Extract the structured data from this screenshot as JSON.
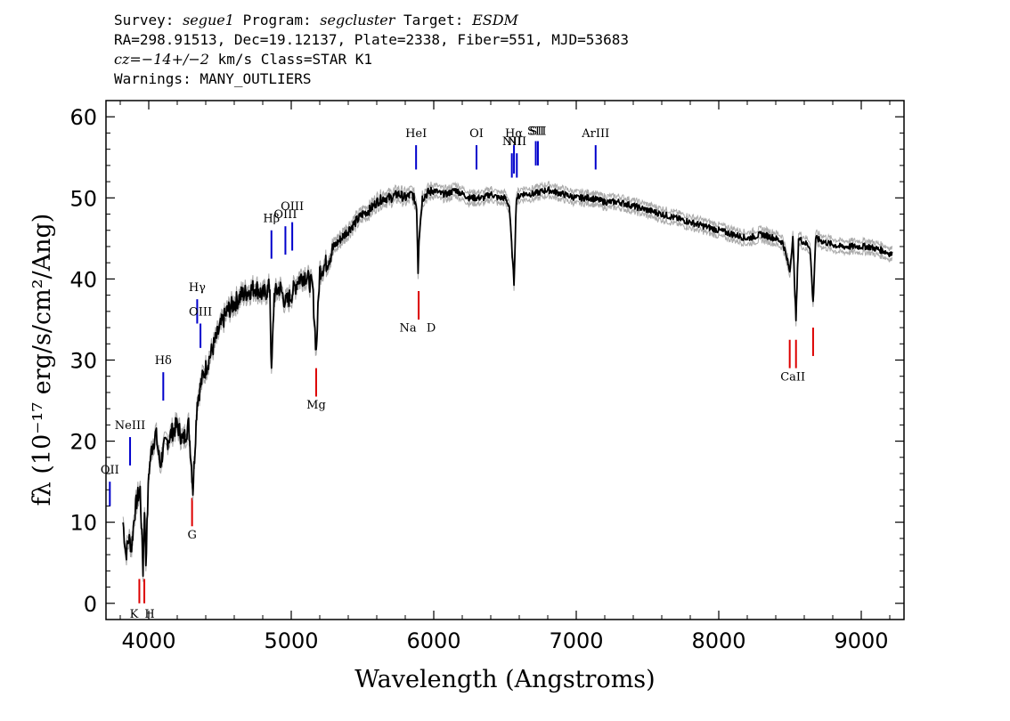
{
  "header": {
    "survey_label": "Survey:",
    "survey": "segue1",
    "program_label": "Program:",
    "program": "segcluster",
    "target_label": "Target:",
    "target": "ESDM",
    "coords": "RA=298.91513, Dec=19.12137, Plate=2338, Fiber=551, MJD=53683",
    "redshift_italic": "cz=−14+/−2",
    "redshift_rest": " km/s Class=STAR K1",
    "warnings": "Warnings: MANY_OUTLIERS"
  },
  "chart_data": {
    "type": "line",
    "xlabel": "Wavelength (Angstroms)",
    "ylabel": "fλ (10⁻¹⁷ erg/s/cm²/Ang)",
    "xlim": [
      3700,
      9300
    ],
    "ylim": [
      -2,
      62
    ],
    "x_ticks": [
      4000,
      5000,
      6000,
      7000,
      8000,
      9000
    ],
    "y_ticks": [
      0,
      10,
      20,
      30,
      40,
      50,
      60
    ],
    "grid": false,
    "series": [
      {
        "color": "#000000",
        "error_color": "#aaaaaa",
        "x": [
          3820,
          3840,
          3860,
          3880,
          3900,
          3920,
          3940,
          3960,
          3970,
          3980,
          4000,
          4020,
          4050,
          4080,
          4102,
          4130,
          4160,
          4200,
          4240,
          4280,
          4300,
          4310,
          4340,
          4380,
          4420,
          4460,
          4500,
          4550,
          4600,
          4650,
          4700,
          4750,
          4800,
          4850,
          4861,
          4880,
          4920,
          4960,
          5000,
          5050,
          5100,
          5150,
          5175,
          5200,
          5250,
          5300,
          5350,
          5400,
          5450,
          5500,
          5550,
          5600,
          5650,
          5700,
          5750,
          5800,
          5850,
          5880,
          5890,
          5896,
          5920,
          5950,
          6000,
          6050,
          6100,
          6150,
          6200,
          6250,
          6300,
          6350,
          6400,
          6450,
          6500,
          6530,
          6563,
          6580,
          6620,
          6700,
          6800,
          6900,
          7000,
          7100,
          7200,
          7300,
          7400,
          7500,
          7600,
          7700,
          7800,
          7900,
          8000,
          8100,
          8200,
          8300,
          8400,
          8450,
          8498,
          8520,
          8542,
          8560,
          8600,
          8640,
          8662,
          8680,
          8750,
          8850,
          8950,
          9050,
          9150,
          9220
        ],
        "values": [
          10,
          6,
          8,
          7,
          11,
          13,
          14,
          4,
          12,
          5,
          16,
          19,
          21,
          17,
          19,
          20,
          21,
          22,
          20,
          22,
          17,
          14,
          25,
          28,
          30,
          32,
          34,
          36,
          37,
          38,
          38.5,
          39,
          38,
          39,
          28,
          38,
          39,
          37,
          38,
          40,
          40.5,
          39,
          31,
          41,
          42,
          44,
          45,
          46,
          47,
          48,
          48.5,
          49.5,
          50,
          50,
          50.5,
          50,
          50.5,
          49,
          41,
          45,
          50,
          50.5,
          51,
          50.5,
          50.5,
          51,
          50.5,
          50,
          50,
          50,
          50.5,
          50,
          50,
          49,
          39.5,
          50,
          50.5,
          50.5,
          51,
          50.5,
          50,
          50,
          49.5,
          49.5,
          49,
          48.5,
          48,
          47.5,
          47,
          46.5,
          46,
          45.5,
          45,
          45.5,
          45,
          44.5,
          41,
          45,
          35,
          45,
          44.5,
          44,
          37,
          45,
          44.5,
          44,
          44,
          44,
          43.5,
          43
        ]
      }
    ],
    "emission_lines": [
      {
        "label": "OII",
        "x": 3727,
        "y_bottom": 12,
        "y_top": 15,
        "label_y": 16
      },
      {
        "label": "NeIII",
        "x": 3869,
        "y_bottom": 17,
        "y_top": 20.5,
        "label_y": 21.5
      },
      {
        "label": "Hδ",
        "x": 4102,
        "y_bottom": 25,
        "y_top": 28.5,
        "label_y": 29.5
      },
      {
        "label": "Hγ",
        "x": 4340,
        "y_bottom": 34.5,
        "y_top": 37.5,
        "label_y": 38.5
      },
      {
        "label": "OIII",
        "x": 4363,
        "y_bottom": 31.5,
        "y_top": 34.5,
        "label_y": 35.5
      },
      {
        "label": "Hβ",
        "x": 4861,
        "y_bottom": 42.5,
        "y_top": 46,
        "label_y": 47
      },
      {
        "label": "OIII",
        "x": 4959,
        "y_bottom": 43,
        "y_top": 46.5,
        "label_y": 47.5
      },
      {
        "label": "OIII",
        "x": 5007,
        "y_bottom": 43.5,
        "y_top": 47,
        "label_y": 48.5
      },
      {
        "label": "HeI",
        "x": 5876,
        "y_bottom": 53.5,
        "y_top": 56.5,
        "label_y": 57.5
      },
      {
        "label": "OI",
        "x": 6300,
        "y_bottom": 53.5,
        "y_top": 56.5,
        "label_y": 57.5
      },
      {
        "label": "NII",
        "x": 6548,
        "y_bottom": 52.5,
        "y_top": 55.5,
        "label_y": 56.5
      },
      {
        "label": "Hα",
        "x": 6563,
        "y_bottom": 53,
        "y_top": 56.5,
        "label_y": 57.5
      },
      {
        "label": "NII",
        "x": 6583,
        "y_bottom": 52.5,
        "y_top": 55.5,
        "label_y": 56.5
      },
      {
        "label": "SII",
        "x": 6716,
        "y_bottom": 54,
        "y_top": 57,
        "label_y": 57.8
      },
      {
        "label": "SII",
        "x": 6731,
        "y_bottom": 54,
        "y_top": 57,
        "label_y": 57.8
      },
      {
        "label": "ArIII",
        "x": 7136,
        "y_bottom": 53.5,
        "y_top": 56.5,
        "label_y": 57.5
      }
    ],
    "absorption_lines": [
      {
        "label": "K",
        "x": 3934,
        "y_bottom": 0,
        "y_top": 3,
        "label_y": -1.8
      },
      {
        "label": "H",
        "x": 3969,
        "y_bottom": 0,
        "y_top": 3,
        "label_y": -1.8
      },
      {
        "label": "G",
        "x": 4304,
        "y_bottom": 9.5,
        "y_top": 13,
        "label_y": 8
      },
      {
        "label": "Mg",
        "x": 5175,
        "y_bottom": 25.5,
        "y_top": 29,
        "label_y": 24
      },
      {
        "label": "Na",
        "x": 5894,
        "y_bottom": 35,
        "y_top": 38.5,
        "label_y": 33.5
      },
      {
        "label": "D",
        "x": 5894,
        "y_bottom": 35,
        "y_top": 38.5,
        "label_y": 33.5
      },
      {
        "label": "CaII",
        "x": 8498,
        "y_bottom": 29,
        "y_top": 32.5,
        "label_y": 27.5
      },
      {
        "label": "CaII",
        "x": 8542,
        "y_bottom": 29,
        "y_top": 32.5,
        "label_y": 27.5
      },
      {
        "label": "CaII",
        "x": 8662,
        "y_bottom": 30.5,
        "y_top": 34,
        "label_y": 27.5
      }
    ],
    "colors": {
      "emission": "#0000cc",
      "absorption": "#dd0000",
      "axis": "#000000"
    }
  }
}
